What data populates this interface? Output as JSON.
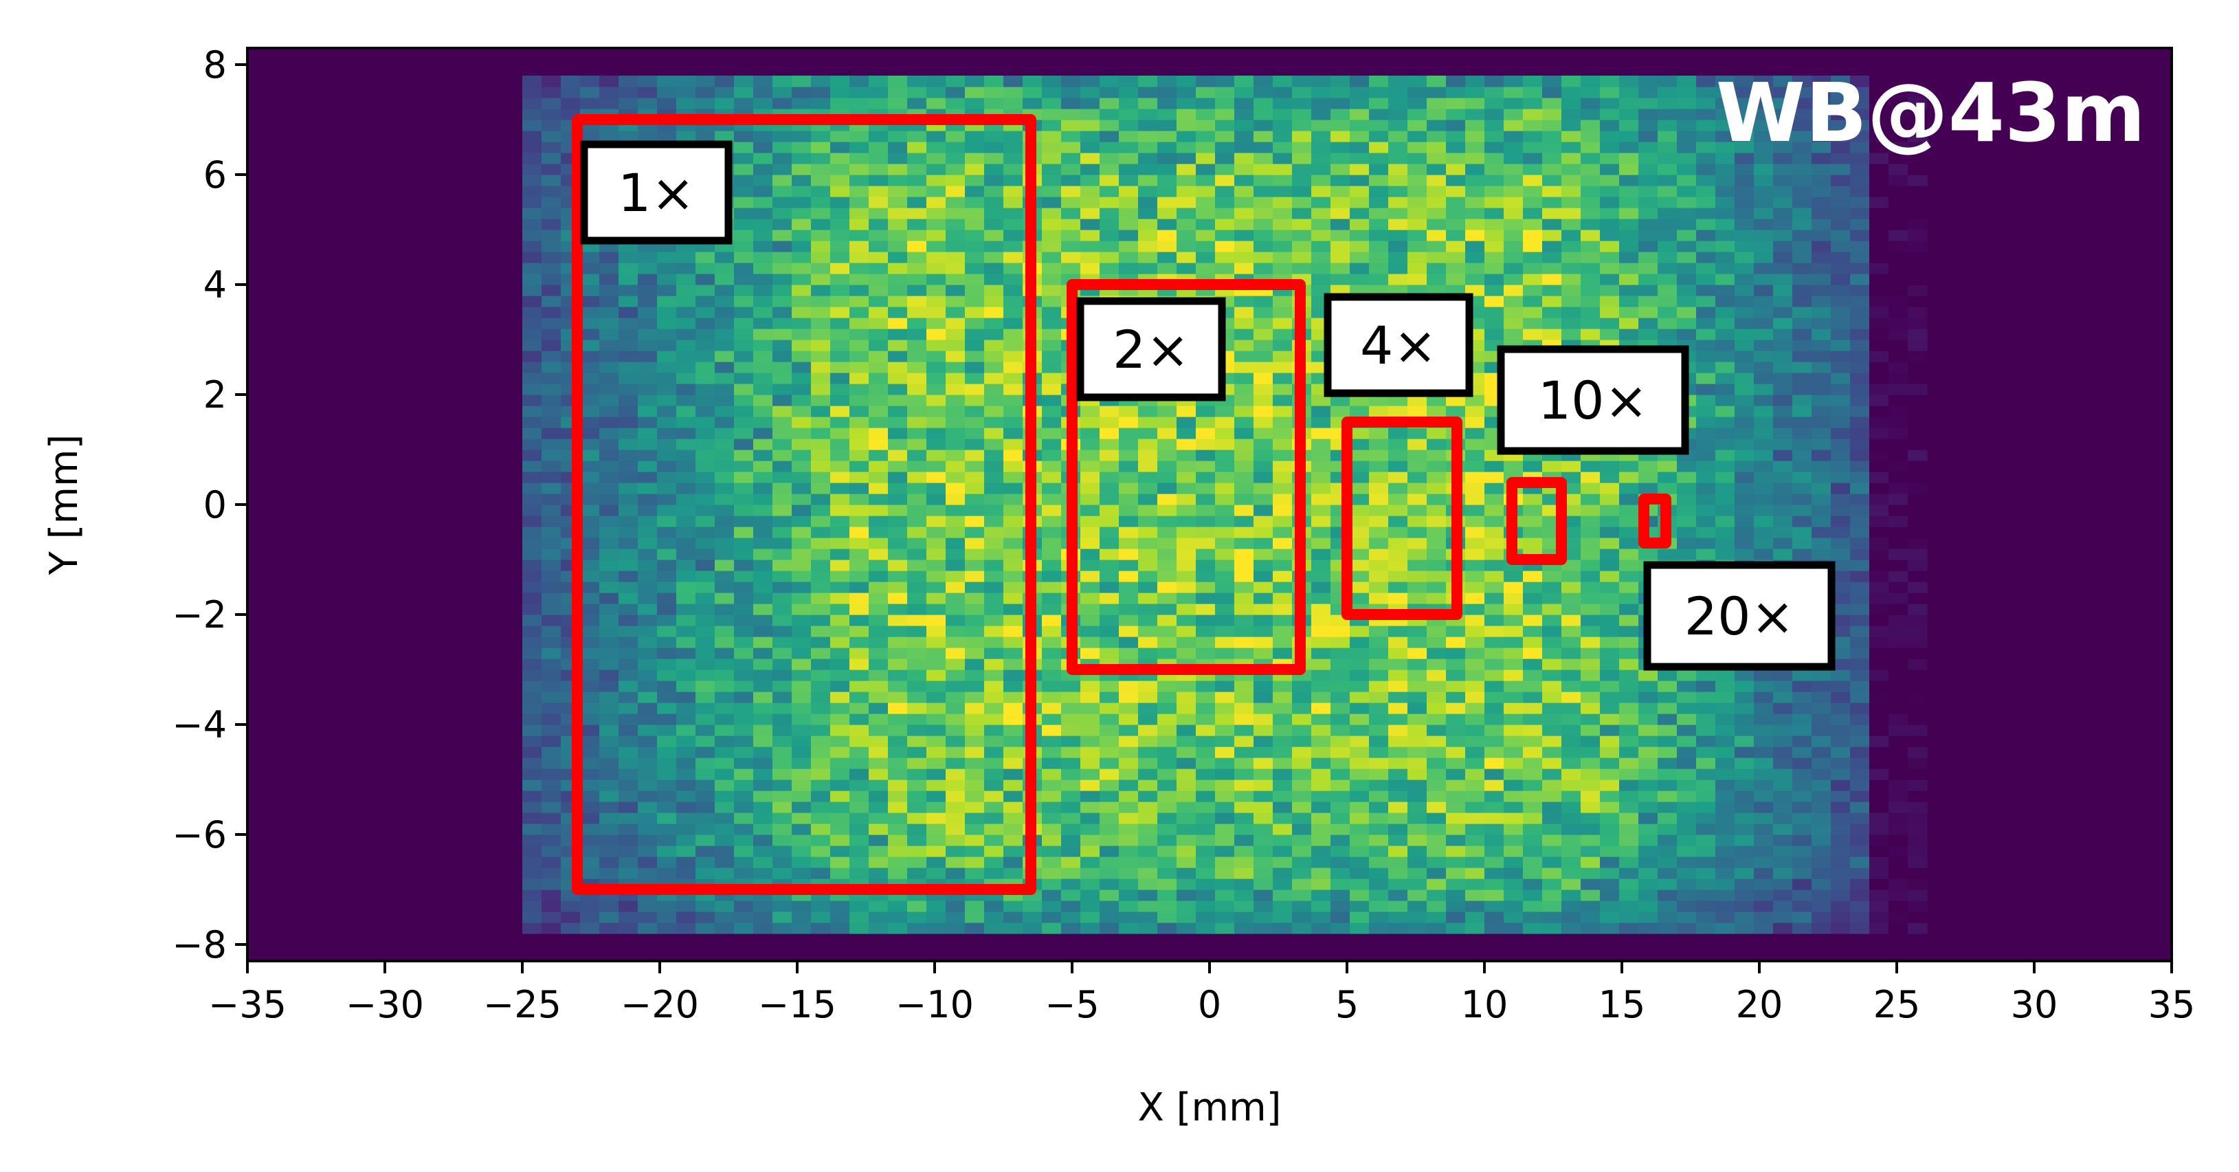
{
  "chart_data": {
    "type": "heatmap",
    "title": "WB@43m",
    "xlabel": "X [mm]",
    "ylabel": "Y [mm]",
    "xlim": [
      -35,
      35
    ],
    "ylim": [
      -8.3,
      8.3
    ],
    "xticks": [
      -35,
      -30,
      -25,
      -20,
      -15,
      -10,
      -5,
      0,
      5,
      10,
      15,
      20,
      25,
      30,
      35
    ],
    "yticks": [
      -8,
      -6,
      -4,
      -2,
      0,
      2,
      4,
      6,
      8
    ],
    "xtick_labels": [
      "−35",
      "−30",
      "−25",
      "−20",
      "−15",
      "−10",
      "−5",
      "0",
      "5",
      "10",
      "15",
      "20",
      "25",
      "30",
      "35"
    ],
    "ytick_labels": [
      "−8",
      "−6",
      "−4",
      "−2",
      "0",
      "2",
      "4",
      "6",
      "8"
    ],
    "colormap": "viridis",
    "beam_extent": {
      "x": [
        -25,
        26
      ],
      "y": [
        -7.8,
        7.8
      ]
    },
    "intensity_profile_x": {
      "rise_start": -25,
      "plateau_start": -12,
      "plateau_end": 13,
      "fall_end": 24
    },
    "regions": [
      {
        "label": "1×",
        "x": [
          -23,
          -6.5
        ],
        "y": [
          -7,
          7
        ]
      },
      {
        "label": "2×",
        "x": [
          -5,
          3.3
        ],
        "y": [
          -3,
          4
        ]
      },
      {
        "label": "4×",
        "x": [
          5,
          9
        ],
        "y": [
          -2,
          1.5
        ]
      },
      {
        "label": "10×",
        "x": [
          11,
          12.8
        ],
        "y": [
          -1,
          0.4
        ]
      },
      {
        "label": "20×",
        "x": [
          15.8,
          16.6
        ],
        "y": [
          -0.7,
          0.1
        ]
      }
    ],
    "region_color": "#ff0000"
  }
}
